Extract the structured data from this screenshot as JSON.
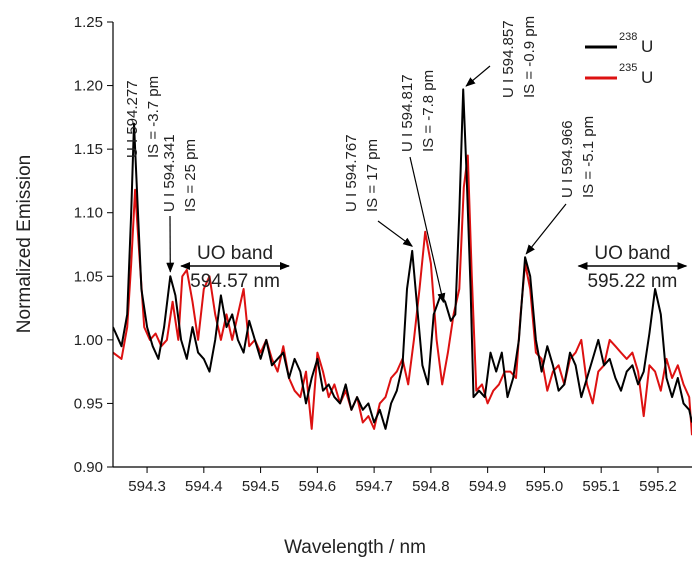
{
  "chart_data": {
    "type": "line",
    "xlabel": "Wavelength / nm",
    "ylabel": "Normalized Emission",
    "xlim": [
      594.24,
      595.26
    ],
    "ylim": [
      0.9,
      1.25
    ],
    "x_ticks": [
      594.3,
      594.4,
      594.5,
      594.6,
      594.7,
      594.8,
      594.9,
      595.0,
      595.1,
      595.2
    ],
    "x_tick_labels": [
      "594.3",
      "594.4",
      "594.5",
      "594.6",
      "594.7",
      "594.8",
      "594.9",
      "595.0",
      "595.1",
      "595.2"
    ],
    "y_ticks": [
      0.9,
      0.95,
      1.0,
      1.05,
      1.1,
      1.15,
      1.2,
      1.25
    ],
    "y_tick_labels": [
      "0.90",
      "0.95",
      "1.00",
      "1.05",
      "1.10",
      "1.15",
      "1.20",
      "1.25"
    ],
    "grid": false,
    "legend": {
      "position": "top-right",
      "entries": [
        {
          "sup": "238",
          "text": "U",
          "color": "#000000"
        },
        {
          "sup": "235",
          "text": "U",
          "color": "#dd1111"
        }
      ]
    },
    "series": [
      {
        "color": "#000000",
        "x": [
          594.24,
          594.255,
          594.265,
          594.272,
          594.277,
          594.283,
          594.29,
          594.3,
          594.31,
          594.32,
          594.33,
          594.341,
          594.35,
          594.36,
          594.37,
          594.38,
          594.39,
          594.4,
          594.41,
          594.42,
          594.43,
          594.44,
          594.45,
          594.46,
          594.47,
          594.48,
          594.49,
          594.5,
          594.51,
          594.52,
          594.53,
          594.54,
          594.55,
          594.56,
          594.57,
          594.58,
          594.59,
          594.6,
          594.61,
          594.62,
          594.63,
          594.64,
          594.65,
          594.66,
          594.67,
          594.68,
          594.69,
          594.7,
          594.71,
          594.72,
          594.73,
          594.74,
          594.75,
          594.758,
          594.767,
          594.775,
          594.785,
          594.795,
          594.805,
          594.817,
          594.825,
          594.835,
          594.843,
          594.85,
          594.857,
          594.863,
          594.87,
          594.875,
          594.885,
          594.895,
          594.905,
          594.915,
          594.925,
          594.935,
          594.945,
          594.955,
          594.966,
          594.975,
          594.985,
          594.995,
          595.005,
          595.015,
          595.025,
          595.035,
          595.045,
          595.055,
          595.065,
          595.075,
          595.085,
          595.095,
          595.105,
          595.115,
          595.125,
          595.135,
          595.145,
          595.155,
          595.165,
          595.175,
          595.185,
          595.195,
          595.205,
          595.215,
          595.225,
          595.235,
          595.245,
          595.255,
          595.26
        ],
        "y": [
          1.01,
          0.995,
          1.02,
          1.1,
          1.17,
          1.11,
          1.04,
          1.01,
          0.995,
          0.985,
          1.01,
          1.05,
          1.035,
          1.0,
          0.985,
          1.01,
          0.99,
          0.985,
          0.975,
          1.0,
          1.035,
          1.01,
          1.02,
          1.0,
          0.99,
          1.015,
          1.0,
          0.985,
          1.0,
          0.98,
          0.985,
          0.99,
          0.97,
          0.985,
          0.975,
          0.95,
          0.97,
          0.985,
          0.96,
          0.965,
          0.955,
          0.95,
          0.965,
          0.945,
          0.955,
          0.945,
          0.95,
          0.935,
          0.945,
          0.93,
          0.95,
          0.96,
          0.98,
          1.04,
          1.07,
          1.03,
          0.98,
          0.965,
          1.02,
          1.035,
          1.03,
          1.015,
          1.02,
          1.1,
          1.197,
          1.13,
          1.04,
          0.955,
          0.96,
          0.955,
          0.99,
          0.975,
          0.99,
          0.955,
          0.97,
          1.0,
          1.065,
          1.05,
          1.0,
          0.975,
          0.995,
          0.98,
          0.96,
          0.965,
          0.99,
          0.98,
          0.955,
          0.97,
          0.985,
          1.0,
          0.98,
          0.985,
          0.97,
          0.96,
          0.975,
          0.98,
          0.965,
          0.975,
          1.005,
          1.04,
          1.02,
          0.97,
          0.955,
          0.97,
          0.95,
          0.945,
          0.935
        ]
      },
      {
        "color": "#dd1111",
        "x": [
          594.24,
          594.255,
          594.265,
          594.272,
          594.279,
          594.286,
          594.295,
          594.305,
          594.315,
          594.325,
          594.335,
          594.345,
          594.355,
          594.362,
          594.37,
          594.38,
          594.39,
          594.4,
          594.41,
          594.42,
          594.43,
          594.44,
          594.45,
          594.46,
          594.47,
          594.48,
          594.49,
          594.5,
          594.51,
          594.52,
          594.53,
          594.54,
          594.55,
          594.56,
          594.57,
          594.58,
          594.59,
          594.6,
          594.61,
          594.62,
          594.63,
          594.64,
          594.65,
          594.66,
          594.67,
          594.68,
          594.69,
          594.7,
          594.71,
          594.72,
          594.73,
          594.74,
          594.75,
          594.76,
          594.77,
          594.78,
          594.79,
          594.8,
          594.81,
          594.82,
          594.83,
          594.84,
          594.85,
          594.858,
          594.865,
          594.872,
          594.88,
          594.89,
          594.9,
          594.91,
          594.92,
          594.93,
          594.94,
          594.95,
          594.958,
          594.966,
          594.975,
          594.985,
          594.995,
          595.005,
          595.015,
          595.025,
          595.035,
          595.045,
          595.055,
          595.065,
          595.075,
          595.085,
          595.095,
          595.105,
          595.115,
          595.125,
          595.135,
          595.145,
          595.155,
          595.165,
          595.175,
          595.185,
          595.195,
          595.205,
          595.215,
          595.225,
          595.235,
          595.245,
          595.255,
          595.26
        ],
        "y": [
          0.99,
          0.985,
          1.01,
          1.06,
          1.118,
          1.07,
          1.01,
          1.0,
          1.005,
          0.995,
          1.0,
          1.03,
          1.0,
          1.05,
          1.055,
          1.03,
          1.0,
          1.04,
          1.05,
          1.02,
          1.0,
          1.02,
          1.0,
          1.02,
          1.04,
          0.995,
          1.0,
          0.99,
          1.0,
          0.985,
          0.975,
          0.995,
          0.97,
          0.96,
          0.955,
          0.975,
          0.93,
          0.99,
          0.975,
          0.955,
          0.965,
          0.95,
          0.96,
          0.945,
          0.955,
          0.935,
          0.94,
          0.93,
          0.95,
          0.955,
          0.97,
          0.975,
          0.985,
          0.965,
          1.0,
          1.04,
          1.085,
          1.06,
          1.0,
          0.965,
          0.99,
          1.02,
          1.04,
          1.12,
          1.145,
          1.05,
          0.96,
          0.965,
          0.95,
          0.96,
          0.965,
          0.975,
          0.975,
          0.97,
          1.02,
          1.06,
          1.04,
          0.99,
          0.985,
          0.96,
          0.975,
          0.98,
          0.965,
          0.985,
          0.99,
          1.0,
          0.965,
          0.95,
          0.975,
          0.98,
          1.0,
          0.995,
          0.99,
          0.985,
          0.99,
          0.975,
          0.94,
          0.98,
          0.975,
          0.96,
          0.985,
          0.97,
          0.98,
          0.965,
          0.955,
          0.925
        ]
      }
    ],
    "annotations": [
      {
        "id": "a1",
        "line1": "U I 594.277",
        "line2": "IS = -3.7 pm"
      },
      {
        "id": "a2",
        "line1": "U I 594.341",
        "line2": "IS = 25 pm",
        "arrow_to": {
          "x": 594.341,
          "y": 1.052
        }
      },
      {
        "id": "a3",
        "line1": "U I 594.767",
        "line2": "IS = 17 pm",
        "arrow_to": {
          "x": 594.767,
          "y": 1.072
        }
      },
      {
        "id": "a4",
        "line1": "U I 594.817",
        "line2": "IS = -7.8 pm",
        "arrow_to": {
          "x": 594.822,
          "y": 1.028
        }
      },
      {
        "id": "a5",
        "line1": "U I 594.857",
        "line2": "IS = -0.9 pm",
        "arrow_to": {
          "x": 594.862,
          "y": 1.198
        }
      },
      {
        "id": "a6",
        "line1": "U I 594.966",
        "line2": "IS = -5.1 pm",
        "arrow_to": {
          "x": 594.968,
          "y": 1.066
        }
      }
    ],
    "bands": [
      {
        "label": "UO band",
        "value": "594.57 nm",
        "x_range": [
          594.36,
          594.55
        ]
      },
      {
        "label": "UO band",
        "value": "595.22 nm",
        "x_range": [
          595.06,
          595.25
        ]
      }
    ]
  }
}
